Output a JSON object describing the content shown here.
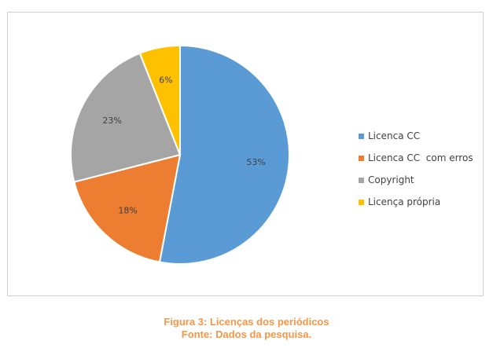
{
  "chart_data": {
    "type": "pie",
    "categories": [
      "Licenca CC",
      "Licenca CC  com erros",
      "Copyright",
      "Licença própria"
    ],
    "values": [
      53,
      18,
      23,
      6
    ],
    "value_labels": [
      "53%",
      "18%",
      "23%",
      "6%"
    ],
    "colors": [
      "#5b9bd5",
      "#ed7d31",
      "#a5a5a5",
      "#ffc000"
    ],
    "legend_position": "right",
    "start_angle": "top, clockwise"
  },
  "caption": {
    "title": "Figura 3: Licenças dos periódicos",
    "source": "Fonte: Dados da pesquisa."
  }
}
